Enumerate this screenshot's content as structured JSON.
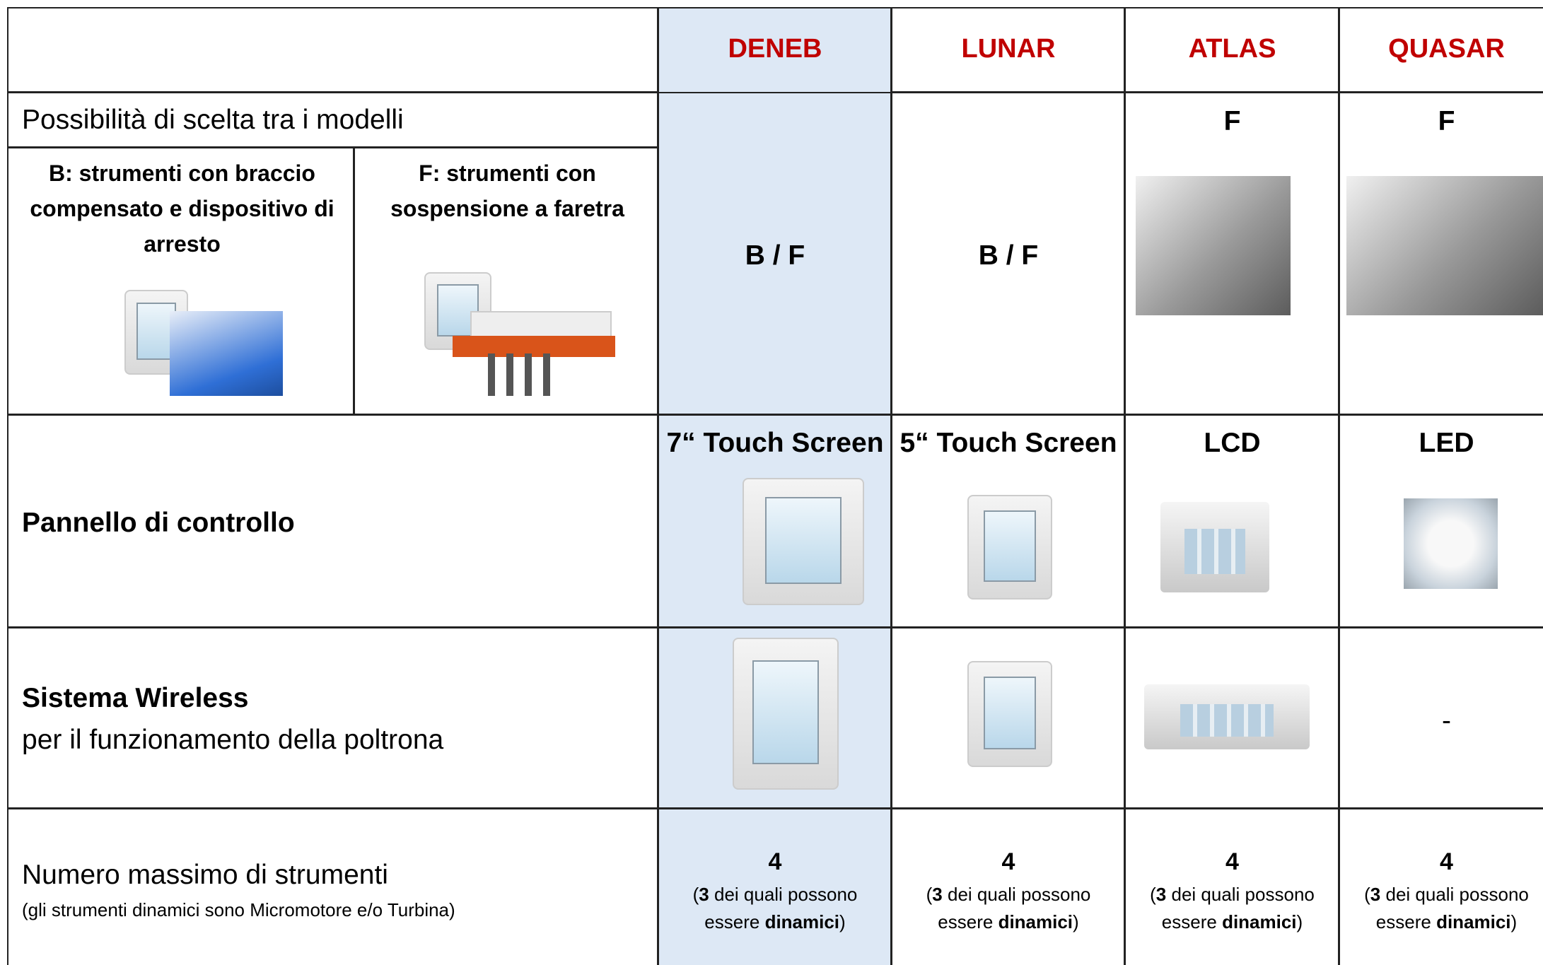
{
  "header": {
    "columns": [
      "DENEB",
      "LUNAR",
      "ATLAS",
      "QUASAR"
    ]
  },
  "model_choice": {
    "label": "Possibilità di scelta tra i modelli",
    "option_b": "B: strumenti con braccio compensato e dispositivo di arresto",
    "option_f": "F: strumenti con sospensione a faretra",
    "values": [
      "B / F",
      "B / F",
      "F",
      "F"
    ]
  },
  "control_panel": {
    "label": "Pannello di controllo",
    "values": [
      "7“ Touch Screen",
      "5“ Touch Screen",
      "LCD",
      "LED"
    ]
  },
  "wireless": {
    "label": "Sistema Wireless",
    "sublabel": "per il funzionamento della poltrona",
    "quasar_value": "-"
  },
  "max_tools": {
    "label": "Numero massimo di strumenti",
    "note": "(gli strumenti dinamici sono Micromotore e/o Turbina)",
    "values": [
      {
        "count": 4,
        "open": "(",
        "dynamic_count": 3,
        "text_a": "dei quali possono",
        "text_b": "essere",
        "strong": "dinamici",
        "close": ")"
      },
      {
        "count": 4,
        "open": "(",
        "dynamic_count": 3,
        "text_a": "dei quali possono",
        "text_b": "essere",
        "strong": "dinamici",
        "close": ")"
      },
      {
        "count": 4,
        "open": "(",
        "dynamic_count": 3,
        "text_a": "dei quali possono",
        "text_b": "essere",
        "strong": "dinamici",
        "close": ")"
      },
      {
        "count": 4,
        "open": "(",
        "dynamic_count": 3,
        "text_a": "dei quali possono",
        "text_b": "essere",
        "strong": "dinamici",
        "close": ")"
      }
    ]
  }
}
